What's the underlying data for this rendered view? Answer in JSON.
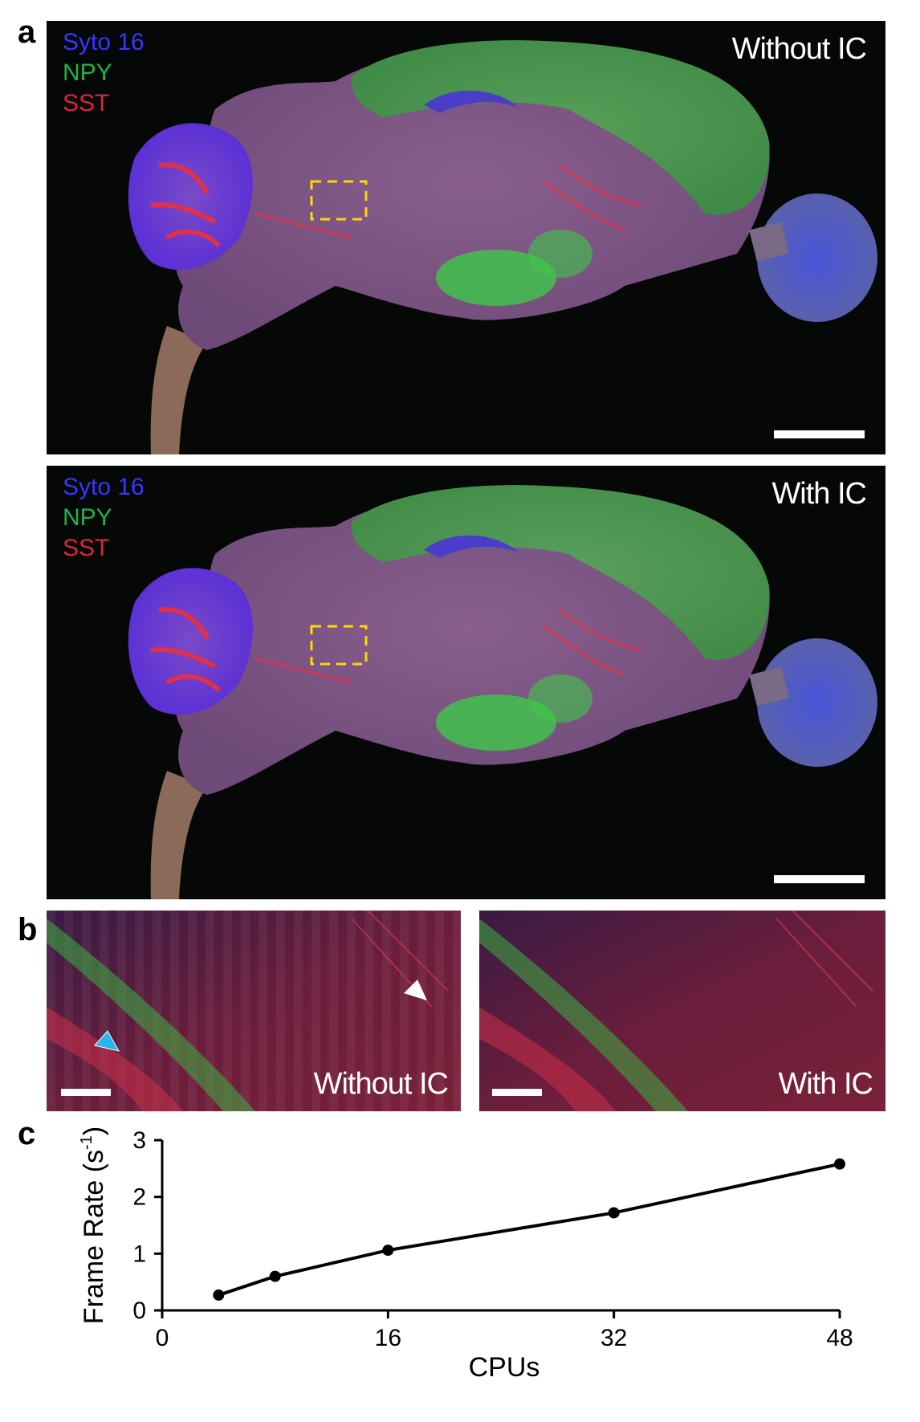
{
  "panels": {
    "a": "a",
    "b": "b",
    "c": "c"
  },
  "channels": {
    "syto": "Syto 16",
    "npy": "NPY",
    "sst": "SST"
  },
  "conditions": {
    "without": "Without IC",
    "with": "With IC"
  },
  "colors": {
    "syto": "#3a35ff",
    "npy": "#1fb24a",
    "sst": "#d8263a",
    "roi_box": "#ffd800",
    "arrow_cyan": "#26b6f0",
    "arrow_white": "#ffffff"
  },
  "chart_data": {
    "type": "line",
    "x": [
      4,
      8,
      16,
      32,
      48
    ],
    "y": [
      0.27,
      0.6,
      1.06,
      1.72,
      2.58
    ],
    "xlabel": "CPUs",
    "ylabel": "Frame Rate (s",
    "ylabel_sup": "-1",
    "ylabel_close": ")",
    "xlim": [
      0,
      48
    ],
    "ylim": [
      0,
      3
    ],
    "xticks": [
      0,
      16,
      32,
      48
    ],
    "yticks": [
      0,
      1,
      2,
      3
    ],
    "grid": false,
    "marker": "filled-circle",
    "color": "#000000"
  }
}
